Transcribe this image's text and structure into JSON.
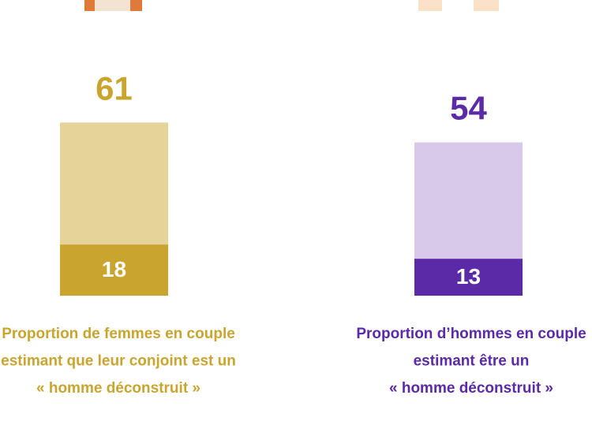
{
  "chart_data": {
    "type": "bar",
    "groups": [
      {
        "total": 61,
        "part": 18,
        "color": "#c9a52f",
        "light_color": "#e6d39a",
        "caption": [
          "Proportion de femmes en couple",
          "estimant que leur conjoint est un",
          "« homme déconstruit »"
        ]
      },
      {
        "total": 54,
        "part": 13,
        "color": "#5b2aa6",
        "light_color": "#d8c9ea",
        "caption": [
          "Proportion d’hommes en couple",
          "estimant être un",
          "« homme déconstruit »"
        ]
      }
    ]
  }
}
